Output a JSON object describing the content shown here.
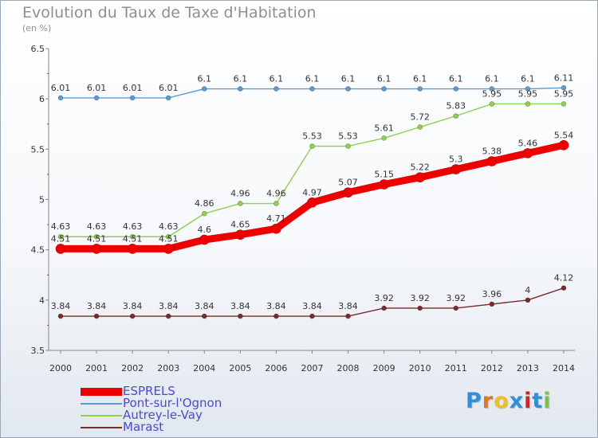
{
  "title": "Evolution du Taux de Taxe d'Habitation",
  "subtitle": "(en %)",
  "logo_text": "Proxiti",
  "chart_data": {
    "type": "line",
    "title": "Evolution du Taux de Taxe d'Habitation",
    "subtitle": "(en %)",
    "xlabel": "",
    "ylabel": "",
    "x": [
      "2000",
      "2001",
      "2002",
      "2003",
      "2004",
      "2005",
      "2006",
      "2007",
      "2008",
      "2009",
      "2010",
      "2011",
      "2012",
      "2013",
      "2014"
    ],
    "ylim": [
      3.5,
      6.5
    ],
    "yticks": [
      3.5,
      4,
      4.5,
      5,
      5.5,
      6,
      6.5
    ],
    "grid": false,
    "legend_position": "bottom-left",
    "series": [
      {
        "name": "ESPRELS",
        "color": "#ee0000",
        "emphasis": true,
        "values": [
          4.51,
          4.51,
          4.51,
          4.51,
          4.6,
          4.65,
          4.71,
          4.97,
          5.07,
          5.15,
          5.22,
          5.3,
          5.38,
          5.46,
          5.54
        ]
      },
      {
        "name": "Pont-sur-l'Ognon",
        "color": "#5b9bd5",
        "values": [
          6.01,
          6.01,
          6.01,
          6.01,
          6.1,
          6.1,
          6.1,
          6.1,
          6.1,
          6.1,
          6.1,
          6.1,
          6.1,
          6.1,
          6.11
        ]
      },
      {
        "name": "Autrey-le-Vay",
        "color": "#8ed14b",
        "values": [
          4.63,
          4.63,
          4.63,
          4.63,
          4.86,
          4.96,
          4.96,
          5.53,
          5.53,
          5.61,
          5.72,
          5.83,
          5.95,
          5.95,
          5.95
        ]
      },
      {
        "name": "Marast",
        "color": "#7a2a2a",
        "values": [
          3.84,
          3.84,
          3.84,
          3.84,
          3.84,
          3.84,
          3.84,
          3.84,
          3.84,
          3.92,
          3.92,
          3.92,
          3.96,
          4,
          4.12
        ]
      }
    ]
  }
}
